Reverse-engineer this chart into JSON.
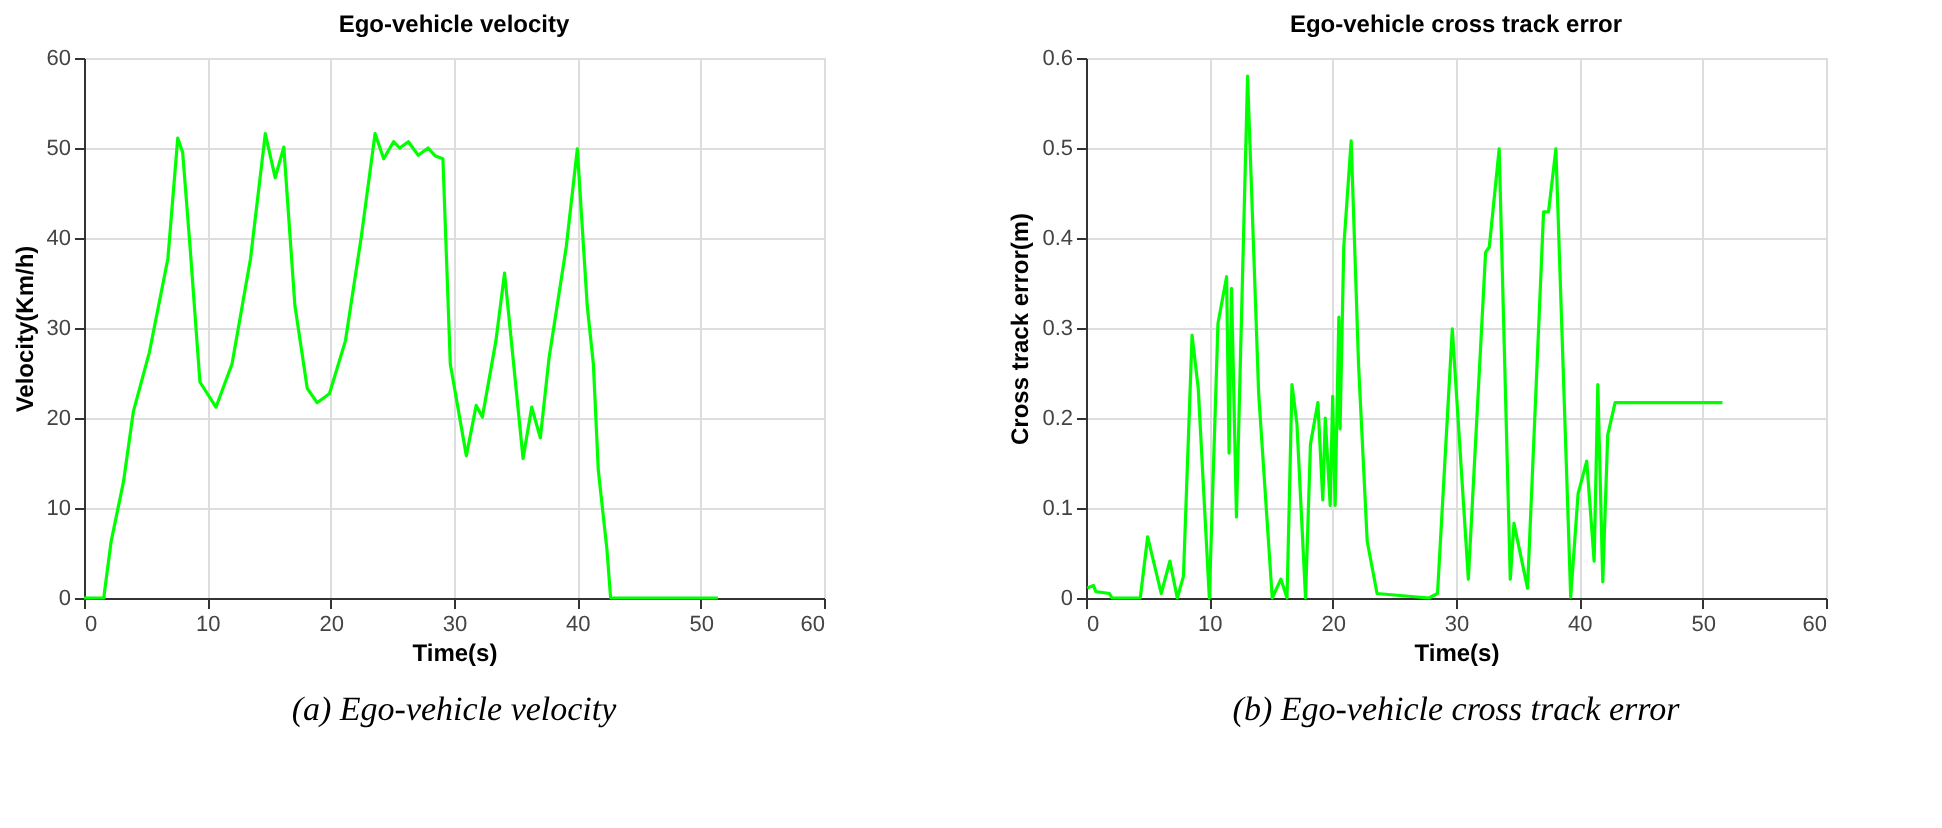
{
  "chart_data": [
    {
      "type": "line",
      "title": "Ego-vehicle velocity",
      "xlabel": "Time(s)",
      "ylabel": "Velocity(Km/h)",
      "xlim": [
        0,
        60
      ],
      "xticks": [
        0,
        10,
        20,
        30,
        40,
        50,
        60
      ],
      "ylim": [
        0,
        60
      ],
      "yticks": [
        0,
        10,
        20,
        30,
        40,
        50,
        60
      ],
      "grid": true,
      "line_style": "solid",
      "marker": "none",
      "annotations": [
        "(a) Ego-vehicle velocity"
      ],
      "series": [
        {
          "color": "#00ff00",
          "x": [
            0,
            1.6,
            2.2,
            3.2,
            4.0,
            5.3,
            6.8,
            7.6,
            8.0,
            8.6,
            9.4,
            10.7,
            12.0,
            13.5,
            14.7,
            15.5,
            16.2,
            17.1,
            18.1,
            18.9,
            19.9,
            21.2,
            22.5,
            23.6,
            24.3,
            25.1,
            25.6,
            26.3,
            27.1,
            27.9,
            28.5,
            29.1,
            29.7,
            31.0,
            31.8,
            32.3,
            33.4,
            34.1,
            35.6,
            36.3,
            37.0,
            37.7,
            39.1,
            40.0,
            40.8,
            41.3,
            41.7,
            42.4,
            42.7,
            51.4
          ],
          "values": [
            0,
            0,
            6.3,
            12.9,
            20.7,
            27.3,
            37.7,
            51.1,
            49.5,
            39,
            24,
            21.2,
            26,
            37.7,
            51.6,
            46.7,
            50.1,
            32.5,
            23.3,
            21.7,
            22.7,
            28.6,
            40.3,
            51.6,
            48.8,
            50.7,
            50,
            50.7,
            49.2,
            50,
            49.1,
            48.8,
            26,
            15.8,
            21.4,
            20.1,
            28.6,
            36.1,
            15.5,
            21.2,
            17.8,
            26.6,
            39,
            49.9,
            32.5,
            26,
            14.2,
            5.4,
            0,
            0
          ]
        }
      ]
    },
    {
      "type": "line",
      "title": "Ego-vehicle cross track error",
      "xlabel": "Time(s)",
      "ylabel": "Cross track error(m)",
      "xlim": [
        0,
        60
      ],
      "xticks": [
        0,
        10,
        20,
        30,
        40,
        50,
        60
      ],
      "ylim": [
        0,
        0.6
      ],
      "yticks": [
        0,
        0.1,
        0.2,
        0.3,
        0.4,
        0.5,
        0.6
      ],
      "grid": true,
      "line_style": "solid",
      "marker": "none",
      "annotations": [
        "(b) Ego-vehicle cross track error"
      ],
      "series": [
        {
          "color": "#00ff00",
          "x": [
            0.1,
            0.6,
            0.8,
            1.9,
            2.1,
            4.4,
            5.0,
            6.1,
            6.8,
            7.4,
            7.9,
            8.6,
            9.1,
            10.0,
            10.7,
            11.4,
            11.6,
            11.8,
            12.2,
            13.1,
            14.0,
            15.1,
            15.8,
            16.3,
            16.7,
            17.1,
            17.8,
            18.2,
            18.8,
            19.2,
            19.4,
            19.8,
            20.0,
            20.2,
            20.5,
            20.6,
            20.9,
            21.5,
            22.1,
            22.8,
            23.6,
            27.8,
            28.5,
            29.7,
            31.0,
            32.4,
            32.7,
            33.5,
            34.4,
            34.7,
            35.8,
            37.1,
            37.5,
            38.1,
            39.3,
            39.9,
            40.6,
            41.2,
            41.5,
            41.9,
            42.3,
            42.9,
            51.6
          ],
          "values": [
            0.011,
            0.014,
            0.007,
            0.005,
            0,
            0,
            0.068,
            0.005,
            0.041,
            0,
            0.024,
            0.292,
            0.233,
            0,
            0.305,
            0.357,
            0.161,
            0.344,
            0.09,
            0.58,
            0.227,
            0,
            0.021,
            0,
            0.237,
            0.194,
            0,
            0.171,
            0.217,
            0.109,
            0.2,
            0.103,
            0.224,
            0.103,
            0.312,
            0.188,
            0.39,
            0.508,
            0.259,
            0.063,
            0.005,
            0,
            0.005,
            0.299,
            0.021,
            0.384,
            0.39,
            0.499,
            0.021,
            0.083,
            0.011,
            0.429,
            0.429,
            0.499,
            0.001,
            0.116,
            0.152,
            0.041,
            0.237,
            0.018,
            0.181,
            0.217,
            0.217
          ]
        }
      ]
    }
  ]
}
